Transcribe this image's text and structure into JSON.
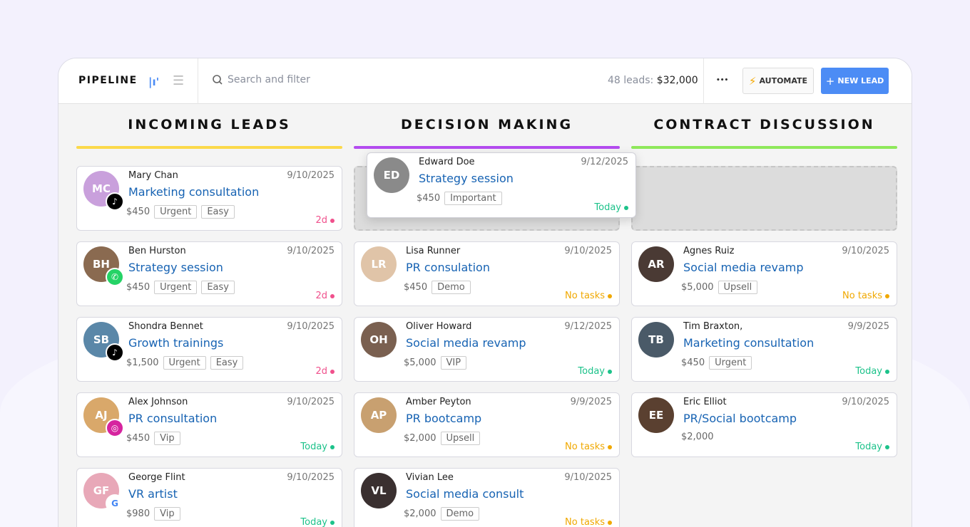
{
  "header": {
    "title": "PIPELINE",
    "search_placeholder": "Search and filter",
    "leads_label": "48 leads:",
    "leads_total": "$32,000",
    "more": "•••",
    "automate": "AUTOMATE",
    "new_lead": "NEW LEAD"
  },
  "colors": {
    "accent": "#4c8cf5",
    "today": "#1cc28a",
    "notasks": "#f0a800",
    "overdue": "#f0508c"
  },
  "columns": [
    {
      "title": "INCOMING LEADS",
      "color": "#fbd94a",
      "cards": [
        {
          "name": "Mary Chan",
          "date": "9/10/2025",
          "deal": "Marketing consultation",
          "amount": "$450",
          "tags": [
            "Urgent",
            "Easy"
          ],
          "status": "2d",
          "status_type": "overdue",
          "source": "tiktok",
          "avatar": "#c9a0dc"
        },
        {
          "name": "Ben Hurston",
          "date": "9/10/2025",
          "deal": "Strategy session",
          "amount": "$450",
          "tags": [
            "Urgent",
            "Easy"
          ],
          "status": "2d",
          "status_type": "overdue",
          "source": "whatsapp",
          "avatar": "#8a6a50"
        },
        {
          "name": "Shondra Bennet",
          "date": "9/10/2025",
          "deal": "Growth trainings",
          "amount": "$1,500",
          "tags": [
            "Urgent",
            "Easy"
          ],
          "status": "2d",
          "status_type": "overdue",
          "source": "tiktok",
          "avatar": "#5a87a8"
        },
        {
          "name": "Alex Johnson",
          "date": "9/10/2025",
          "deal": "PR consultation",
          "amount": "$450",
          "tags": [
            "Vip"
          ],
          "status": "Today",
          "status_type": "today",
          "source": "instagram",
          "avatar": "#d9a86a"
        },
        {
          "name": "George Flint",
          "date": "9/10/2025",
          "deal": "VR artist",
          "amount": "$980",
          "tags": [
            "Vip"
          ],
          "status": "Today",
          "status_type": "today",
          "source": "google",
          "avatar": "#e8a8b8"
        }
      ]
    },
    {
      "title": "DECISION MAKING",
      "color": "#b44cf0",
      "placeholder": true,
      "cards": [
        {
          "name": "Lisa Runner",
          "date": "9/10/2025",
          "deal": "PR consulation",
          "amount": "$450",
          "tags": [
            "Demo"
          ],
          "status": "No tasks",
          "status_type": "notasks",
          "avatar": "#e0c4a8"
        },
        {
          "name": "Oliver Howard",
          "date": "9/12/2025",
          "deal": "Social media revamp",
          "amount": "$5,000",
          "tags": [
            "VIP"
          ],
          "status": "Today",
          "status_type": "today",
          "avatar": "#7a6050"
        },
        {
          "name": "Amber Peyton",
          "date": "9/9/2025",
          "deal": "PR bootcamp",
          "amount": "$2,000",
          "tags": [
            "Upsell"
          ],
          "status": "No tasks",
          "status_type": "notasks",
          "avatar": "#c8a070"
        },
        {
          "name": "Vivian Lee",
          "date": "9/10/2025",
          "deal": "Social media consult",
          "amount": "$2,000",
          "tags": [
            "Demo"
          ],
          "status": "No tasks",
          "status_type": "notasks",
          "avatar": "#3a3030"
        }
      ]
    },
    {
      "title": "CONTRACT DISCUSSION",
      "color": "#8ee85a",
      "placeholder": true,
      "cards": [
        {
          "name": "Agnes Ruiz",
          "date": "9/10/2025",
          "deal": "Social media revamp",
          "amount": "$5,000",
          "tags": [
            "Upsell"
          ],
          "status": "No tasks",
          "status_type": "notasks",
          "avatar": "#4a3a34"
        },
        {
          "name": "Tim Braxton,",
          "date": "9/9/2025",
          "deal": "Marketing consultation",
          "amount": "$450",
          "tags": [
            "Urgent"
          ],
          "status": "Today",
          "status_type": "today",
          "avatar": "#4a5a68"
        },
        {
          "name": "Eric Elliot",
          "date": "9/10/2025",
          "deal": "PR/Social bootcamp",
          "amount": "$2,000",
          "tags": [],
          "status": "Today",
          "status_type": "today",
          "avatar": "#5a4030"
        }
      ]
    }
  ],
  "dragging": {
    "name": "Edward Doe",
    "date": "9/12/2025",
    "deal": "Strategy session",
    "amount": "$450",
    "tags": [
      "Important"
    ],
    "status": "Today",
    "status_type": "today",
    "avatar": "#8a8a8a"
  }
}
